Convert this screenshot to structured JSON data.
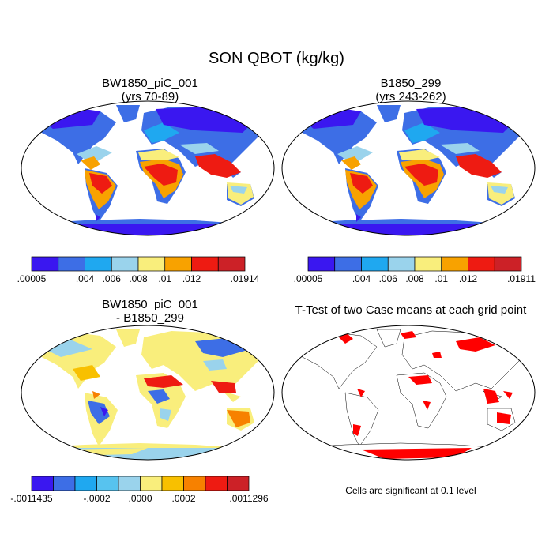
{
  "title": "SON QBOT (kg/kg)",
  "panels": [
    {
      "title_lines": [
        "BW1850_piC_001",
        "(yrs 70-89)"
      ],
      "colorbar": {
        "colors": [
          "#3a17f0",
          "#3d6ee6",
          "#1fa8f0",
          "#9ad3ec",
          "#f9ee7c",
          "#f8a200",
          "#ee1b12",
          "#cc2127"
        ],
        "labels": [
          ".00005",
          ".004",
          ".006",
          ".008",
          ".01",
          ".012",
          ".01914"
        ]
      }
    },
    {
      "title_lines": [
        "B1850_299",
        "(yrs 243-262)"
      ],
      "colorbar": {
        "colors": [
          "#3a17f0",
          "#3d6ee6",
          "#1fa8f0",
          "#9ad3ec",
          "#f9ee7c",
          "#f8a200",
          "#ee1b12",
          "#cc2127"
        ],
        "labels": [
          ".00005",
          ".004",
          ".006",
          ".008",
          ".01",
          ".012",
          ".01911"
        ]
      }
    },
    {
      "title_lines": [
        "BW1850_piC_001",
        "- B1850_299"
      ],
      "colorbar": {
        "colors": [
          "#3a17f0",
          "#3d6ee6",
          "#1fa8f0",
          "#57c3ef",
          "#9ad3ec",
          "#f9ee7c",
          "#f8c000",
          "#f78100",
          "#ee1b12",
          "#cc2127"
        ],
        "labels": [
          "-.0011435",
          "-.0002",
          ".0000",
          ".0002",
          ".0011296"
        ]
      }
    },
    {
      "title_lines": [
        "T-Test of two Case means at each grid point"
      ],
      "note": "Cells are significant at 0.1 level",
      "significance_color": "#ff0000"
    }
  ]
}
